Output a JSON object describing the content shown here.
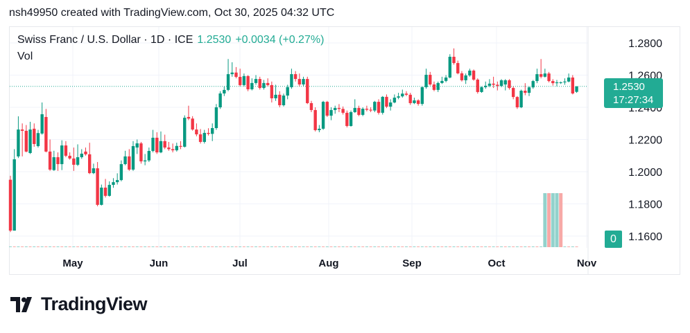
{
  "credit": "nsh49950 created with TradingView.com, Oct 30, 2025 04:32 UTC",
  "legend": {
    "symbol": "Swiss Franc / U.S. Dollar · 1D · ICE",
    "price": "1.2530",
    "change": "+0.0034 (+0.27%)",
    "vol_label": "Vol"
  },
  "price_label": {
    "price": "1.2530",
    "countdown": "17:27:34"
  },
  "volume_label": "0",
  "logo_text": "TradingView",
  "colors": {
    "up": "#089981",
    "down": "#f23645",
    "accent": "#22ab94",
    "vol_up": "#92d2cc",
    "vol_down": "#f7a9a7"
  },
  "chart_data": {
    "type": "candlestick",
    "y_ticks": [
      "1.2800",
      "1.2600",
      "1.2400",
      "1.2200",
      "1.2000",
      "1.1800",
      "1.1600"
    ],
    "x_ticks": [
      "May",
      "Jun",
      "Jul",
      "Aug",
      "Sep",
      "Oct",
      "Nov"
    ],
    "ylim": [
      1.156,
      1.284
    ],
    "grid": true,
    "last_price": 1.253,
    "ohlc": [
      [
        1.195,
        1.1975,
        1.1625,
        1.1634
      ],
      [
        1.1634,
        1.214,
        1.1634,
        1.2077
      ],
      [
        1.2095,
        1.2344,
        1.2085,
        1.2262
      ],
      [
        1.2262,
        1.23,
        1.2095,
        1.2254
      ],
      [
        1.2254,
        1.229,
        1.212,
        1.2125
      ],
      [
        1.2116,
        1.231,
        1.211,
        1.2262
      ],
      [
        1.2267,
        1.23,
        1.2155,
        1.2172
      ],
      [
        1.2159,
        1.226,
        1.215,
        1.224
      ],
      [
        1.2237,
        1.243,
        1.223,
        1.2357
      ],
      [
        1.234,
        1.239,
        1.212,
        1.2125
      ],
      [
        1.2125,
        1.22,
        1.2005,
        1.2013
      ],
      [
        1.201,
        1.213,
        1.2005,
        1.209
      ],
      [
        1.209,
        1.212,
        1.2005,
        1.2047
      ],
      [
        1.2047,
        1.2195,
        1.201,
        1.2163
      ],
      [
        1.2163,
        1.219,
        1.209,
        1.2099
      ],
      [
        1.2099,
        1.212,
        1.2075,
        1.2082
      ],
      [
        1.2082,
        1.215,
        1.2005,
        1.2043
      ],
      [
        1.2043,
        1.217,
        1.2035,
        1.209
      ],
      [
        1.209,
        1.214,
        1.208,
        1.2112
      ],
      [
        1.2125,
        1.215,
        1.21,
        1.2108
      ],
      [
        1.2108,
        1.218,
        1.1985,
        1.1991
      ],
      [
        1.1991,
        1.205,
        1.1985,
        1.2021
      ],
      [
        1.2021,
        1.206,
        1.1785,
        1.1794
      ],
      [
        1.1794,
        1.192,
        1.179,
        1.1901
      ],
      [
        1.1901,
        1.1955,
        1.184,
        1.185
      ],
      [
        1.185,
        1.194,
        1.1845,
        1.1918
      ],
      [
        1.1918,
        1.196,
        1.19,
        1.1935
      ],
      [
        1.1935,
        1.199,
        1.192,
        1.1948
      ],
      [
        1.1948,
        1.207,
        1.194,
        1.2047
      ],
      [
        1.2047,
        1.213,
        1.204,
        1.2095
      ],
      [
        1.2095,
        1.214,
        1.2005,
        1.2013
      ],
      [
        1.2013,
        1.219,
        1.2005,
        1.2159
      ],
      [
        1.215,
        1.22,
        1.211,
        1.2176
      ],
      [
        1.2176,
        1.2185,
        1.205,
        1.2064
      ],
      [
        1.2064,
        1.211,
        1.204,
        1.207
      ],
      [
        1.207,
        1.215,
        1.206,
        1.2129
      ],
      [
        1.2129,
        1.226,
        1.212,
        1.2211
      ],
      [
        1.2211,
        1.2245,
        1.211,
        1.212
      ],
      [
        1.212,
        1.225,
        1.2115,
        1.219
      ],
      [
        1.219,
        1.223,
        1.214,
        1.215
      ],
      [
        1.215,
        1.2185,
        1.213,
        1.214
      ],
      [
        1.214,
        1.2175,
        1.212,
        1.2133
      ],
      [
        1.2133,
        1.218,
        1.2125,
        1.216
      ],
      [
        1.216,
        1.219,
        1.214,
        1.2155
      ],
      [
        1.2155,
        1.235,
        1.215,
        1.2335
      ],
      [
        1.234,
        1.241,
        1.232,
        1.233
      ],
      [
        1.233,
        1.2345,
        1.2255,
        1.2262
      ],
      [
        1.2262,
        1.23,
        1.222,
        1.2232
      ],
      [
        1.2232,
        1.2265,
        1.2175,
        1.2185
      ],
      [
        1.2185,
        1.226,
        1.2175,
        1.2241
      ],
      [
        1.2241,
        1.227,
        1.2225,
        1.2235
      ],
      [
        1.2235,
        1.23,
        1.219,
        1.2271
      ],
      [
        1.2271,
        1.242,
        1.226,
        1.24
      ],
      [
        1.24,
        1.25,
        1.239,
        1.2486
      ],
      [
        1.2486,
        1.253,
        1.247,
        1.2508
      ],
      [
        1.2508,
        1.27,
        1.25,
        1.2606
      ],
      [
        1.2606,
        1.268,
        1.259,
        1.2616
      ],
      [
        1.2616,
        1.265,
        1.258,
        1.2589
      ],
      [
        1.2589,
        1.264,
        1.253,
        1.2538
      ],
      [
        1.2538,
        1.261,
        1.253,
        1.2594
      ],
      [
        1.2594,
        1.26,
        1.25,
        1.2512
      ],
      [
        1.2512,
        1.258,
        1.2505,
        1.2551
      ],
      [
        1.2551,
        1.26,
        1.254,
        1.2576
      ],
      [
        1.2576,
        1.259,
        1.251,
        1.252
      ],
      [
        1.252,
        1.257,
        1.251,
        1.2551
      ],
      [
        1.2551,
        1.258,
        1.253,
        1.2538
      ],
      [
        1.2538,
        1.256,
        1.243,
        1.2456
      ],
      [
        1.2456,
        1.254,
        1.244,
        1.2478
      ],
      [
        1.2478,
        1.25,
        1.24,
        1.2413
      ],
      [
        1.2413,
        1.2485,
        1.2405,
        1.2473
      ],
      [
        1.2473,
        1.254,
        1.245,
        1.2525
      ],
      [
        1.2525,
        1.264,
        1.2515,
        1.2606
      ],
      [
        1.2606,
        1.2625,
        1.256,
        1.2576
      ],
      [
        1.2576,
        1.261,
        1.253,
        1.2542
      ],
      [
        1.2542,
        1.259,
        1.253,
        1.2576
      ],
      [
        1.2576,
        1.259,
        1.242,
        1.2426
      ],
      [
        1.2426,
        1.244,
        1.237,
        1.2383
      ],
      [
        1.2383,
        1.24,
        1.225,
        1.2258
      ],
      [
        1.2258,
        1.229,
        1.2245,
        1.2267
      ],
      [
        1.2267,
        1.244,
        1.226,
        1.2434
      ],
      [
        1.2434,
        1.244,
        1.234,
        1.2348
      ],
      [
        1.2348,
        1.24,
        1.232,
        1.2383
      ],
      [
        1.2383,
        1.241,
        1.236,
        1.2396
      ],
      [
        1.2396,
        1.242,
        1.237,
        1.239
      ],
      [
        1.239,
        1.2405,
        1.2355,
        1.2366
      ],
      [
        1.2366,
        1.238,
        1.2275,
        1.2284
      ],
      [
        1.2284,
        1.238,
        1.228,
        1.237
      ],
      [
        1.237,
        1.245,
        1.2365,
        1.2396
      ],
      [
        1.2396,
        1.241,
        1.2345,
        1.2353
      ],
      [
        1.2353,
        1.24,
        1.2345,
        1.2391
      ],
      [
        1.2391,
        1.241,
        1.2375,
        1.2385
      ],
      [
        1.2385,
        1.24,
        1.237,
        1.238
      ],
      [
        1.238,
        1.244,
        1.237,
        1.2434
      ],
      [
        1.2434,
        1.245,
        1.2355,
        1.2366
      ],
      [
        1.2366,
        1.247,
        1.2355,
        1.2465
      ],
      [
        1.2465,
        1.248,
        1.2395,
        1.2404
      ],
      [
        1.2404,
        1.245,
        1.238,
        1.243
      ],
      [
        1.243,
        1.248,
        1.2425,
        1.246
      ],
      [
        1.246,
        1.249,
        1.245,
        1.2468
      ],
      [
        1.2468,
        1.251,
        1.246,
        1.2485
      ],
      [
        1.2485,
        1.25,
        1.247,
        1.2478
      ],
      [
        1.2478,
        1.249,
        1.2415,
        1.2426
      ],
      [
        1.2426,
        1.246,
        1.242,
        1.2443
      ],
      [
        1.2443,
        1.245,
        1.241,
        1.2421
      ],
      [
        1.2421,
        1.253,
        1.241,
        1.2525
      ],
      [
        1.2525,
        1.264,
        1.2515,
        1.2602
      ],
      [
        1.2602,
        1.262,
        1.2535,
        1.2542
      ],
      [
        1.2542,
        1.256,
        1.25,
        1.2508
      ],
      [
        1.2508,
        1.256,
        1.2495,
        1.2551
      ],
      [
        1.2551,
        1.259,
        1.2545,
        1.2564
      ],
      [
        1.2564,
        1.26,
        1.2555,
        1.2585
      ],
      [
        1.2585,
        1.273,
        1.258,
        1.2714
      ],
      [
        1.2714,
        1.2766,
        1.2665,
        1.2675
      ],
      [
        1.2675,
        1.269,
        1.2605,
        1.2611
      ],
      [
        1.2611,
        1.2625,
        1.256,
        1.2568
      ],
      [
        1.2568,
        1.261,
        1.2545,
        1.2598
      ],
      [
        1.2598,
        1.264,
        1.259,
        1.2628
      ],
      [
        1.2628,
        1.2635,
        1.2565,
        1.2572
      ],
      [
        1.2572,
        1.258,
        1.2485,
        1.2495
      ],
      [
        1.2495,
        1.253,
        1.249,
        1.2525
      ],
      [
        1.2525,
        1.256,
        1.2515,
        1.2534
      ],
      [
        1.2534,
        1.2575,
        1.2525,
        1.2547
      ],
      [
        1.2547,
        1.259,
        1.252,
        1.254
      ],
      [
        1.254,
        1.256,
        1.2505,
        1.2533
      ],
      [
        1.2533,
        1.2575,
        1.2525,
        1.2568
      ],
      [
        1.2542,
        1.2575,
        1.2505,
        1.2568
      ],
      [
        1.2568,
        1.2575,
        1.251,
        1.252
      ],
      [
        1.252,
        1.253,
        1.245,
        1.2464
      ],
      [
        1.2464,
        1.247,
        1.239,
        1.24
      ],
      [
        1.24,
        1.251,
        1.2395,
        1.2503
      ],
      [
        1.2503,
        1.255,
        1.2475,
        1.249
      ],
      [
        1.249,
        1.253,
        1.247,
        1.2524
      ],
      [
        1.2524,
        1.257,
        1.2515,
        1.2563
      ],
      [
        1.2563,
        1.264,
        1.255,
        1.2606
      ],
      [
        1.2606,
        1.27,
        1.258,
        1.259
      ],
      [
        1.259,
        1.264,
        1.2585,
        1.261
      ],
      [
        1.261,
        1.262,
        1.2555,
        1.2563
      ],
      [
        1.2563,
        1.2575,
        1.2535,
        1.255
      ],
      [
        1.255,
        1.257,
        1.253,
        1.2555
      ],
      [
        1.2555,
        1.256,
        1.2545,
        1.2555
      ],
      [
        1.2555,
        1.258,
        1.254,
        1.256
      ],
      [
        1.256,
        1.261,
        1.2555,
        1.2585
      ],
      [
        1.2585,
        1.26,
        1.248,
        1.2486
      ],
      [
        1.2496,
        1.253,
        1.249,
        1.253
      ]
    ],
    "volume": [
      {
        "candle": 135,
        "value": 1,
        "direction": "up"
      },
      {
        "candle": 136,
        "value": 1,
        "direction": "down"
      },
      {
        "candle": 137,
        "value": 1,
        "direction": "up"
      },
      {
        "candle": 138,
        "value": 1,
        "direction": "up"
      },
      {
        "candle": 139,
        "value": 1,
        "direction": "down"
      }
    ]
  }
}
